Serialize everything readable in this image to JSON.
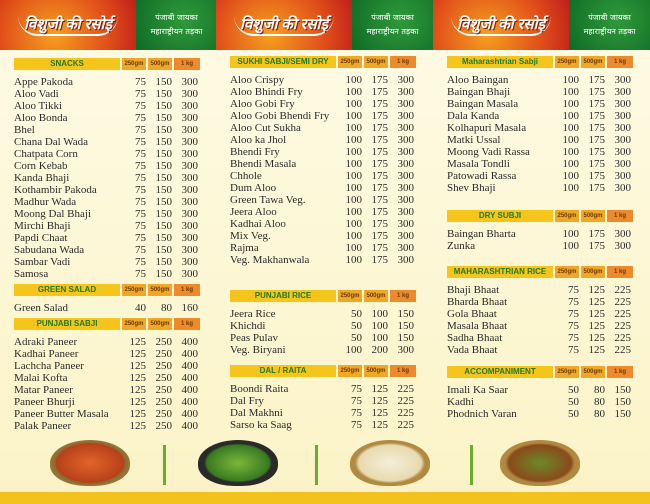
{
  "header": {
    "logo": "विशुजी की रसोई",
    "tagline_1": "पंजाबी जायका",
    "tagline_2": "महाराष्ट्रीयन तड़का"
  },
  "columns": [
    {
      "sections": [
        {
          "title": "SNACKS",
          "sizes": [
            "250gm",
            "500gm",
            "1 kg"
          ],
          "items": [
            [
              "Appe Pakoda",
              "75",
              "150",
              "300"
            ],
            [
              "Aloo Vadi",
              "75",
              "150",
              "300"
            ],
            [
              "Aloo Tikki",
              "75",
              "150",
              "300"
            ],
            [
              "Aloo Bonda",
              "75",
              "150",
              "300"
            ],
            [
              "Bhel",
              "75",
              "150",
              "300"
            ],
            [
              "Chana Dal Wada",
              "75",
              "150",
              "300"
            ],
            [
              "Chatpata Corn",
              "75",
              "150",
              "300"
            ],
            [
              "Corn Kebab",
              "75",
              "150",
              "300"
            ],
            [
              "Kanda Bhaji",
              "75",
              "150",
              "300"
            ],
            [
              "Kothambir Pakoda",
              "75",
              "150",
              "300"
            ],
            [
              "Madhur Wada",
              "75",
              "150",
              "300"
            ],
            [
              "Moong Dal Bhaji",
              "75",
              "150",
              "300"
            ],
            [
              "Mirchi Bhaji",
              "75",
              "150",
              "300"
            ],
            [
              "Papdi Chaat",
              "75",
              "150",
              "300"
            ],
            [
              "Sabudana Wada",
              "75",
              "150",
              "300"
            ],
            [
              "Sambar Vadi",
              "75",
              "150",
              "300"
            ],
            [
              "Samosa",
              "75",
              "150",
              "300"
            ]
          ]
        },
        {
          "title": "GREEN SALAD",
          "sizes": [
            "250gm",
            "500gm",
            "1 kg"
          ],
          "items": [
            [
              "Green Salad",
              "40",
              "80",
              "160"
            ]
          ]
        },
        {
          "title": "PUNJABI SABJI",
          "sizes": [
            "250gm",
            "500gm",
            "1 kg"
          ],
          "items": [
            [
              "Adraki Paneer",
              "125",
              "250",
              "400"
            ],
            [
              "Kadhai Paneer",
              "125",
              "250",
              "400"
            ],
            [
              "Lachcha Paneer",
              "125",
              "250",
              "400"
            ],
            [
              "Malai Kofta",
              "125",
              "250",
              "400"
            ],
            [
              "Matar Paneer",
              "125",
              "250",
              "400"
            ],
            [
              "Paneer Bhurji",
              "125",
              "250",
              "400"
            ],
            [
              "Paneer Butter Masala",
              "125",
              "250",
              "400"
            ],
            [
              "Palak Paneer",
              "125",
              "250",
              "400"
            ]
          ]
        }
      ]
    },
    {
      "sections": [
        {
          "title": "SUKHI SABJI/SEMI DRY",
          "sizes": [
            "250gm",
            "500gm",
            "1 kg"
          ],
          "items": [
            [
              "Aloo Crispy",
              "100",
              "175",
              "300"
            ],
            [
              "Aloo Bhindi Fry",
              "100",
              "175",
              "300"
            ],
            [
              "Aloo Gobi Fry",
              "100",
              "175",
              "300"
            ],
            [
              "Aloo Gobi Bhendi Fry",
              "100",
              "175",
              "300"
            ],
            [
              "Aloo Cut Sukha",
              "100",
              "175",
              "300"
            ],
            [
              "Aloo ka Jhol",
              "100",
              "175",
              "300"
            ],
            [
              "Bhendi Fry",
              "100",
              "175",
              "300"
            ],
            [
              "Bhendi Masala",
              "100",
              "175",
              "300"
            ],
            [
              "Chhole",
              "100",
              "175",
              "300"
            ],
            [
              "Dum Aloo",
              "100",
              "175",
              "300"
            ],
            [
              "Green Tawa Veg.",
              "100",
              "175",
              "300"
            ],
            [
              "Jeera Aloo",
              "100",
              "175",
              "300"
            ],
            [
              "Kadhai Aloo",
              "100",
              "175",
              "300"
            ],
            [
              "Mix Veg.",
              "100",
              "175",
              "300"
            ],
            [
              "Rajma",
              "100",
              "175",
              "300"
            ],
            [
              "Veg. Makhanwala",
              "100",
              "175",
              "300"
            ]
          ]
        },
        {
          "title": "PUNJABI RICE",
          "sizes": [
            "250gm",
            "500gm",
            "1 kg"
          ],
          "items": [
            [
              "Jeera Rice",
              "50",
              "100",
              "150"
            ],
            [
              "Khichdi",
              "50",
              "100",
              "150"
            ],
            [
              "Peas Pulav",
              "50",
              "100",
              "150"
            ],
            [
              "Veg. Biryani",
              "100",
              "200",
              "300"
            ]
          ]
        },
        {
          "title": "DAL / RAITA",
          "sizes": [
            "250gm",
            "500gm",
            "1 kg"
          ],
          "items": [
            [
              "Boondi Raita",
              "75",
              "125",
              "225"
            ],
            [
              "Dal Fry",
              "75",
              "125",
              "225"
            ],
            [
              "Dal Makhni",
              "75",
              "125",
              "225"
            ],
            [
              "Sarso ka Saag",
              "75",
              "125",
              "225"
            ]
          ]
        }
      ]
    },
    {
      "sections": [
        {
          "title": "Maharashtrian Sabji",
          "sizes": [
            "250gm",
            "500gm",
            "1 kg"
          ],
          "items": [
            [
              "Aloo Baingan",
              "100",
              "175",
              "300"
            ],
            [
              "Baingan Bhaji",
              "100",
              "175",
              "300"
            ],
            [
              "Baingan Masala",
              "100",
              "175",
              "300"
            ],
            [
              "Dala Kanda",
              "100",
              "175",
              "300"
            ],
            [
              "Kolhapuri Masala",
              "100",
              "175",
              "300"
            ],
            [
              "Matki Ussal",
              "100",
              "175",
              "300"
            ],
            [
              "Moong Vadi Rassa",
              "100",
              "175",
              "300"
            ],
            [
              "Masala Tondli",
              "100",
              "175",
              "300"
            ],
            [
              "Patowadi Rassa",
              "100",
              "175",
              "300"
            ],
            [
              "Shev Bhaji",
              "100",
              "175",
              "300"
            ]
          ]
        },
        {
          "title": "DRY SUBJI",
          "sizes": [
            "250gm",
            "500gm",
            "1 kg"
          ],
          "items": [
            [
              "Baingan Bharta",
              "100",
              "175",
              "300"
            ],
            [
              "Zunka",
              "100",
              "175",
              "300"
            ]
          ]
        },
        {
          "title": "MAHARASHTRIAN RICE",
          "sizes": [
            "250gm",
            "500gm",
            "1 kg"
          ],
          "items": [
            [
              "Bhaji Bhaat",
              "75",
              "125",
              "225"
            ],
            [
              "Bharda Bhaat",
              "75",
              "125",
              "225"
            ],
            [
              "Gola Bhaat",
              "75",
              "125",
              "225"
            ],
            [
              "Masala Bhaat",
              "75",
              "125",
              "225"
            ],
            [
              "Sadha Bhaat",
              "75",
              "125",
              "225"
            ],
            [
              "Vada Bhaat",
              "75",
              "125",
              "225"
            ]
          ]
        },
        {
          "title": "ACCOMPANIMENT",
          "sizes": [
            "250gm",
            "500gm",
            "1 kg"
          ],
          "items": [
            [
              "Imali Ka Saar",
              "50",
              "80",
              "150"
            ],
            [
              "Kadhi",
              "50",
              "80",
              "150"
            ],
            [
              "Phodnich Varan",
              "50",
              "80",
              "150"
            ]
          ]
        }
      ]
    }
  ],
  "colors": {
    "header_red": "#e1501a",
    "header_green": "#0f6a26",
    "section_bar": "#f6c51b",
    "section_text": "#1f7a24",
    "price_bar": "#ed8a2c",
    "background": "#fdf8dc"
  }
}
